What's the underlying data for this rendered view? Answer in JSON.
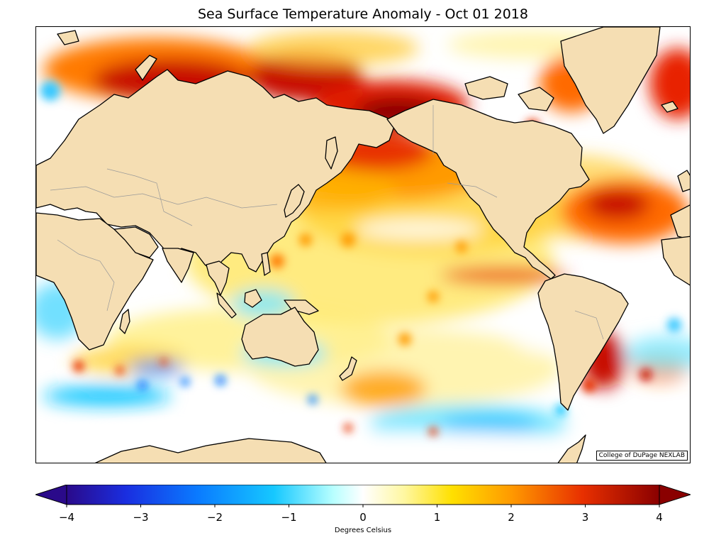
{
  "figure": {
    "title": "Sea Surface Temperature Anomaly - Oct 01 2018",
    "credit": "College of DuPage NEXLAB"
  },
  "colorbar": {
    "label": "Degrees Celsius",
    "ticks": [
      "−4",
      "−3",
      "−2",
      "−1",
      "0",
      "1",
      "2",
      "3",
      "4"
    ],
    "range": [
      -4,
      4
    ],
    "extend": "both",
    "colors": [
      "#2a0a8a",
      "#1a2ee0",
      "#0a7aff",
      "#16c8ff",
      "#b8ffff",
      "#ffffff",
      "#fff7a0",
      "#ffe000",
      "#ff9a00",
      "#e83000",
      "#8a0000"
    ]
  },
  "map": {
    "projection": "cylindrical, Pacific-centered",
    "ocean_color": "#ffffff",
    "land_color": "#f5deb3",
    "coastline_color": "#000000",
    "border_color": "#999999"
  }
}
